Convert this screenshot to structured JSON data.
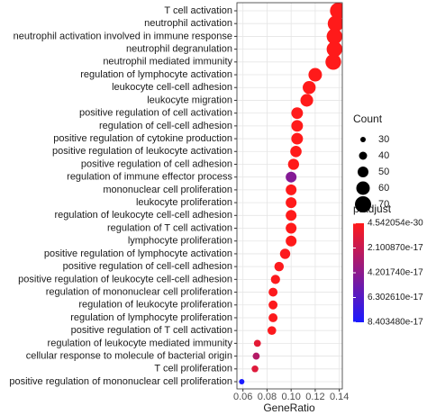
{
  "chart_data": {
    "type": "dot",
    "categories": [
      "T cell activation",
      "neutrophil activation",
      "neutrophil activation involved in immune response",
      "neutrophil degranulation",
      "neutrophil mediated immunity",
      "regulation of lymphocyte activation",
      "leukocyte cell-cell adhesion",
      "leukocyte migration",
      "positive regulation of cell activation",
      "regulation of cell-cell adhesion",
      "positive regulation of cytokine production",
      "positive regulation of leukocyte activation",
      "positive regulation of cell adhesion",
      "regulation of immune effector process",
      "mononuclear cell proliferation",
      "leukocyte proliferation",
      "regulation of leukocyte cell-cell adhesion",
      "regulation of T cell activation",
      "lymphocyte proliferation",
      "positive regulation of lymphocyte activation",
      "positive regulation of cell-cell adhesion",
      "positive regulation of leukocyte cell-cell adhesion",
      "regulation of mononuclear cell proliferation",
      "regulation of leukocyte proliferation",
      "regulation of lymphocyte proliferation",
      "positive regulation of T cell activation",
      "regulation of leukocyte mediated immunity",
      "cellular response to molecule of bacterial origin",
      "T cell proliferation",
      "positive regulation of mononuclear cell proliferation"
    ],
    "values": [
      0.139,
      0.137,
      0.136,
      0.136,
      0.135,
      0.12,
      0.115,
      0.113,
      0.105,
      0.105,
      0.105,
      0.104,
      0.102,
      0.1,
      0.1,
      0.1,
      0.1,
      0.1,
      0.1,
      0.095,
      0.09,
      0.087,
      0.085,
      0.085,
      0.085,
      0.084,
      0.072,
      0.071,
      0.07,
      0.059
    ],
    "counts": [
      70,
      69,
      68,
      68,
      68,
      60,
      58,
      57,
      53,
      53,
      53,
      52,
      51,
      50,
      50,
      50,
      50,
      50,
      50,
      48,
      45,
      44,
      43,
      43,
      43,
      42,
      36,
      36,
      35,
      30
    ],
    "p_adjust": [
      4.542054e-30,
      1e-27,
      1e-27,
      1e-27,
      1e-27,
      1e-24,
      1e-23,
      1e-22,
      1e-21,
      1e-21,
      1e-21,
      1e-21,
      1e-20,
      4.5e-17,
      1e-19,
      1e-19,
      1e-19,
      1e-19,
      1e-19,
      1e-18,
      1e-18,
      1e-18,
      1e-18,
      1e-18,
      1e-18,
      1e-18,
      1e-17,
      2.8e-17,
      1.2e-17,
      8.40348e-17
    ],
    "xlabel": "GeneRatio",
    "xlim": [
      0.055,
      0.1425
    ],
    "xticks": [
      0.06,
      0.08,
      {
        "value": 0.1,
        "label": "0.10"
      },
      0.12,
      0.14
    ],
    "grid": true,
    "size_legend": {
      "title": "Count",
      "ticks": [
        30,
        40,
        50,
        60,
        70
      ]
    },
    "color_legend": {
      "title": "p.adjust",
      "lim": [
        4.542054e-30,
        8.40348e-17
      ],
      "ticks": [
        {
          "value": 4.542054e-30,
          "label": "4.542054e-30"
        },
        {
          "value": 2.10087e-17,
          "label": "2.100870e-17"
        },
        {
          "value": 4.20174e-17,
          "label": "4.201740e-17"
        },
        {
          "value": 6.30261e-17,
          "label": "6.302610e-17"
        },
        {
          "value": 8.40348e-17,
          "label": "8.403480e-17"
        }
      ]
    },
    "color_low": "#ff1a1a",
    "color_high": "#1a1aff"
  }
}
